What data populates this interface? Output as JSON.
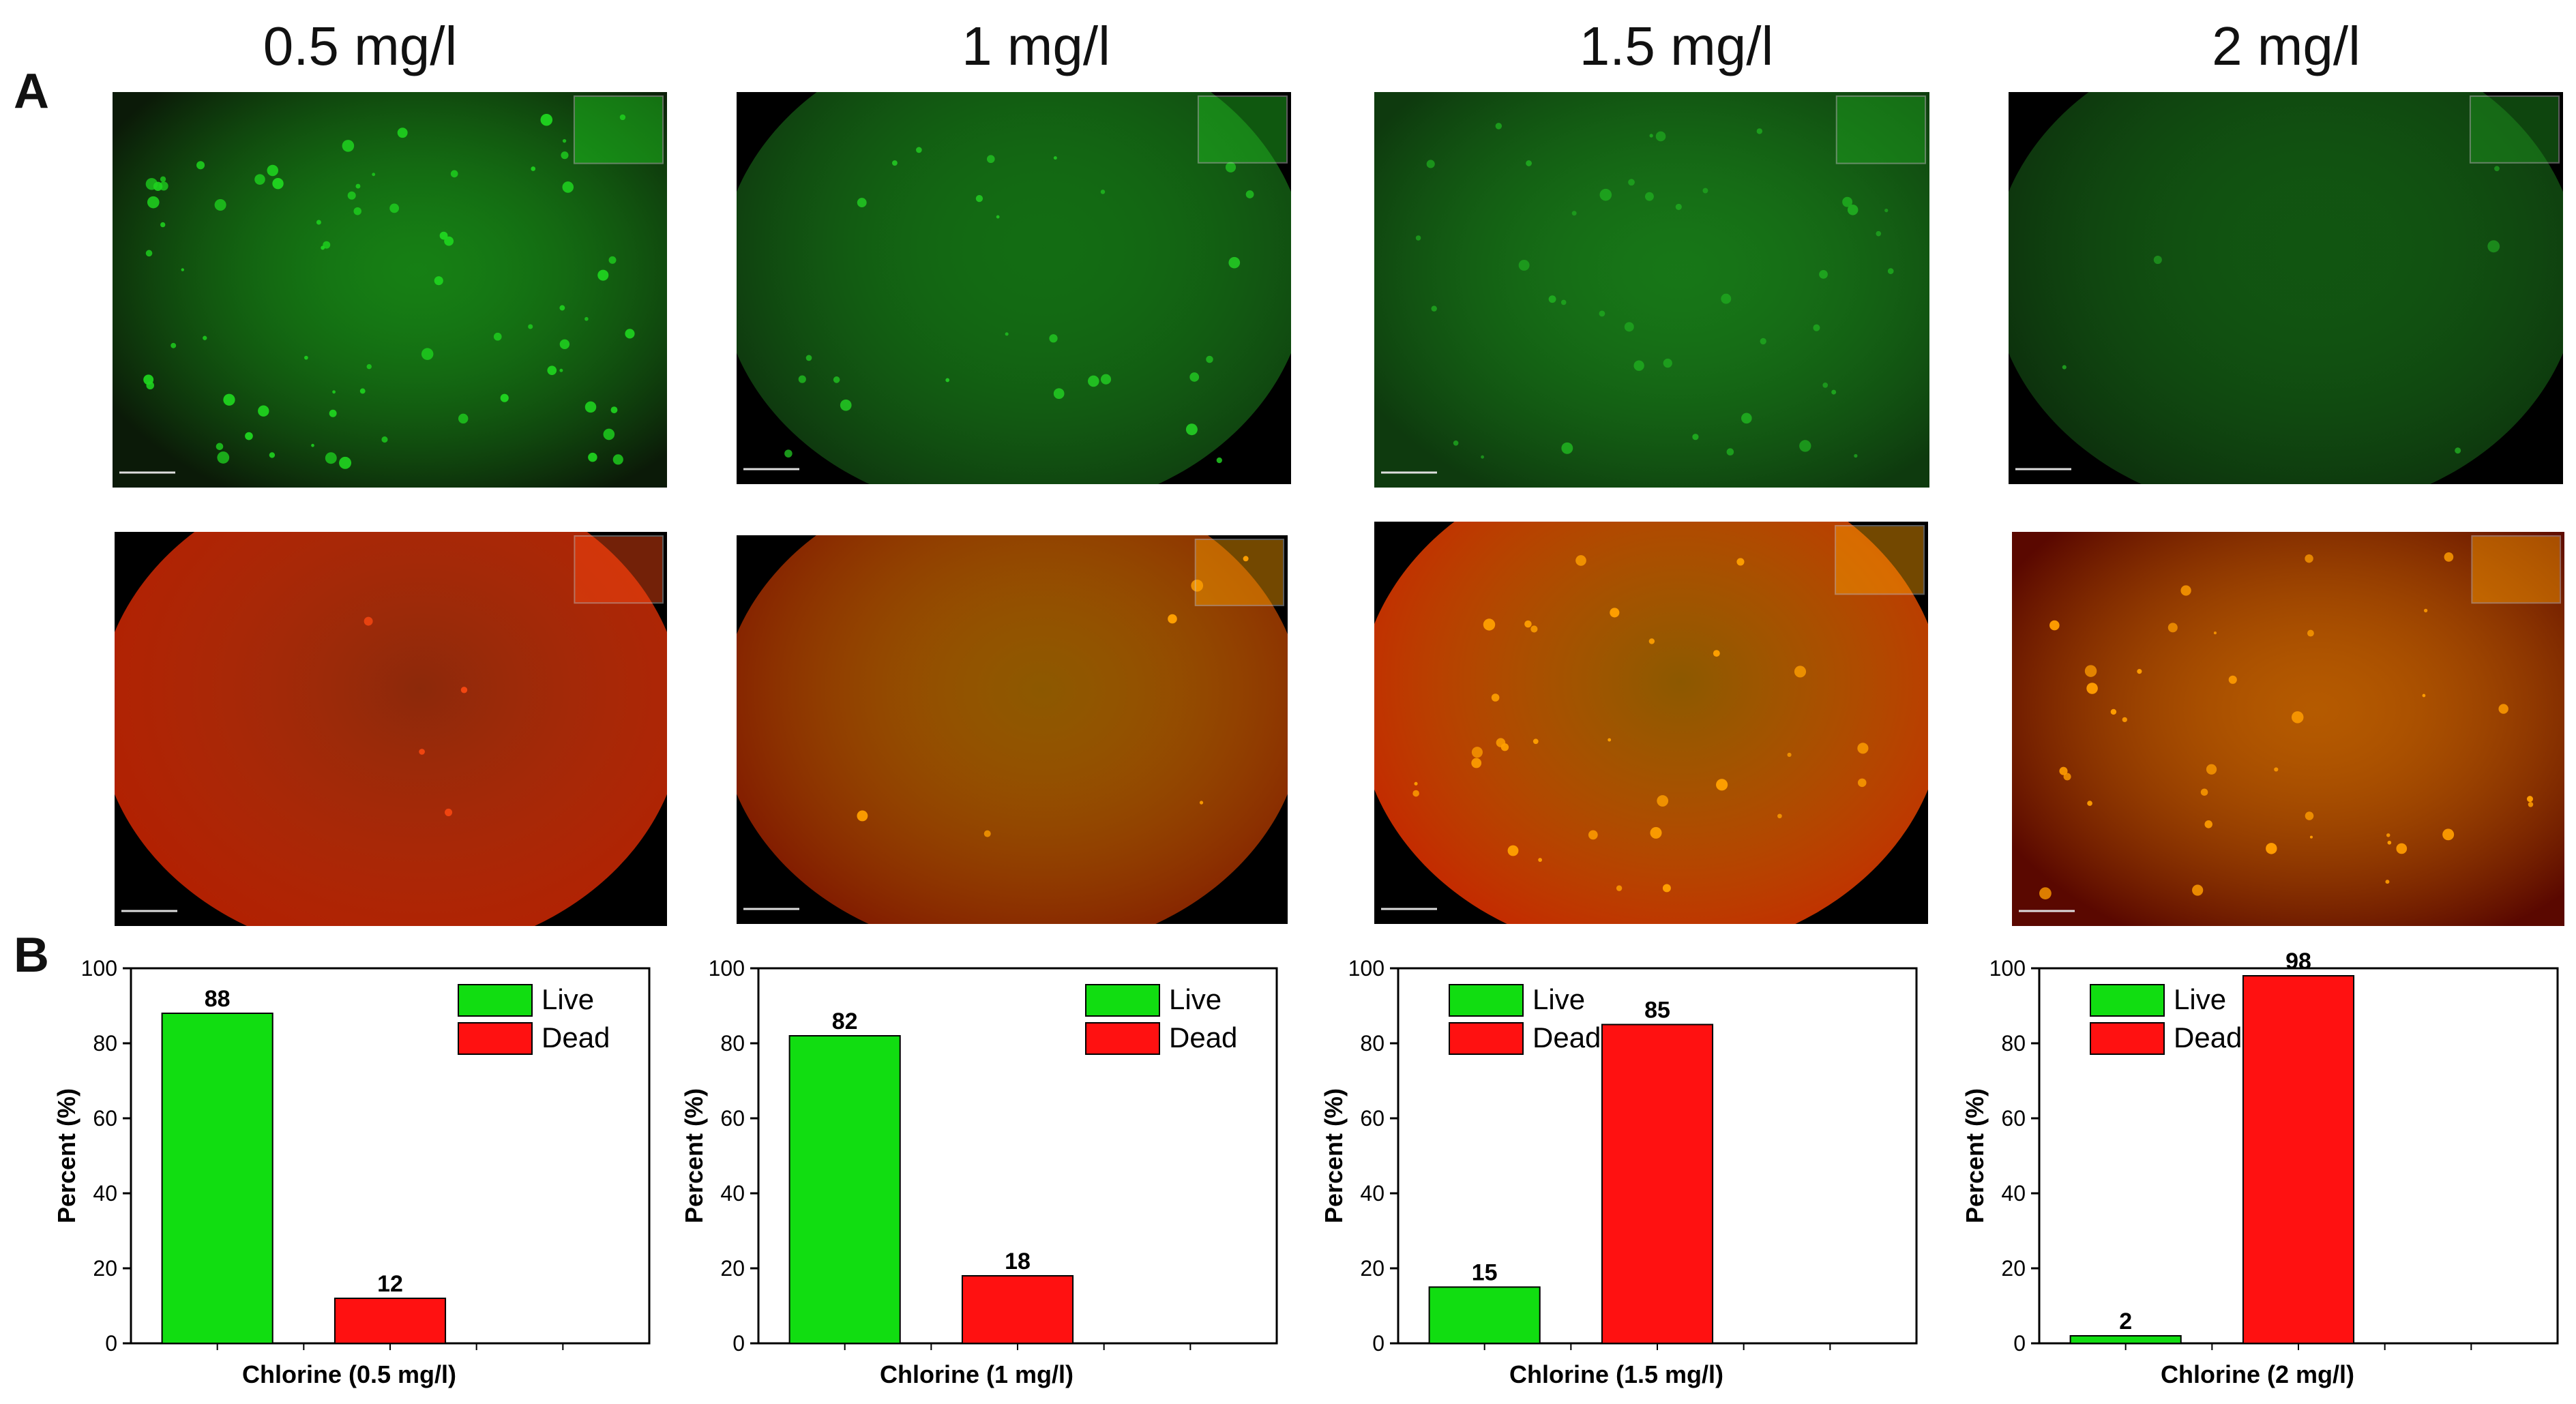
{
  "figure": {
    "panel_labels": [
      "A",
      "B"
    ],
    "concentrations": [
      "0.5 mg/l",
      "1 mg/l",
      "1.5 mg/l",
      "2 mg/l"
    ],
    "micrographs": [
      {
        "stain": "live-green",
        "field": "full",
        "color": "#1fd21f",
        "background": "#0b1a08",
        "spots": 70
      },
      {
        "stain": "live-green",
        "field": "circular",
        "color": "#22c422",
        "background": "#0d2a0d",
        "spots": 26
      },
      {
        "stain": "live-green",
        "field": "full",
        "color": "#1fa81f",
        "background": "#0e3a0e",
        "spots": 40
      },
      {
        "stain": "live-green",
        "field": "circular",
        "color": "#1f9a1f",
        "background": "#0b260b",
        "spots": 5
      },
      {
        "stain": "dead-red",
        "field": "circular",
        "color": "#ff4a12",
        "background": "#b21d00",
        "spots": 4
      },
      {
        "stain": "dead-red",
        "field": "circular",
        "color": "#ffa000",
        "background": "#7a0d00",
        "spots": 6
      },
      {
        "stain": "dead-red",
        "field": "circular",
        "color": "#ffa000",
        "background": "#c81e00",
        "spots": 30
      },
      {
        "stain": "dead-red",
        "field": "full",
        "color": "#ff9d00",
        "background": "#5a0800",
        "spots": 36
      }
    ]
  },
  "chart_data": [
    {
      "type": "bar",
      "categories": [
        "Live",
        "Dead"
      ],
      "values": [
        88,
        12
      ],
      "xlabel": "Chlorine (0.5 mg/l)",
      "ylabel": "Percent (%)",
      "ylim": [
        0,
        100
      ],
      "yticks": [
        0,
        20,
        40,
        60,
        80,
        100
      ],
      "legend": [
        "Live",
        "Dead"
      ],
      "legend_placement": "top-right",
      "colors": [
        "#11dd11",
        "#ff1111"
      ],
      "grid": false
    },
    {
      "type": "bar",
      "categories": [
        "Live",
        "Dead"
      ],
      "values": [
        82,
        18
      ],
      "xlabel": "Chlorine (1 mg/l)",
      "ylabel": "Percent (%)",
      "ylim": [
        0,
        100
      ],
      "yticks": [
        0,
        20,
        40,
        60,
        80,
        100
      ],
      "legend": [
        "Live",
        "Dead"
      ],
      "legend_placement": "top-right",
      "colors": [
        "#11dd11",
        "#ff1111"
      ],
      "grid": false
    },
    {
      "type": "bar",
      "categories": [
        "Live",
        "Dead"
      ],
      "values": [
        15,
        85
      ],
      "xlabel": "Chlorine (1.5 mg/l)",
      "ylabel": "Percent (%)",
      "ylim": [
        0,
        100
      ],
      "yticks": [
        0,
        20,
        40,
        60,
        80,
        100
      ],
      "legend": [
        "Live",
        "Dead"
      ],
      "legend_placement": "top-left",
      "colors": [
        "#11dd11",
        "#ff1111"
      ],
      "grid": false
    },
    {
      "type": "bar",
      "categories": [
        "Live",
        "Dead"
      ],
      "values": [
        2,
        98
      ],
      "xlabel": "Chlorine (2 mg/l)",
      "ylabel": "Percent (%)",
      "ylim": [
        0,
        100
      ],
      "yticks": [
        0,
        20,
        40,
        60,
        80,
        100
      ],
      "legend": [
        "Live",
        "Dead"
      ],
      "legend_placement": "top-left",
      "colors": [
        "#11dd11",
        "#ff1111"
      ],
      "grid": false
    }
  ]
}
